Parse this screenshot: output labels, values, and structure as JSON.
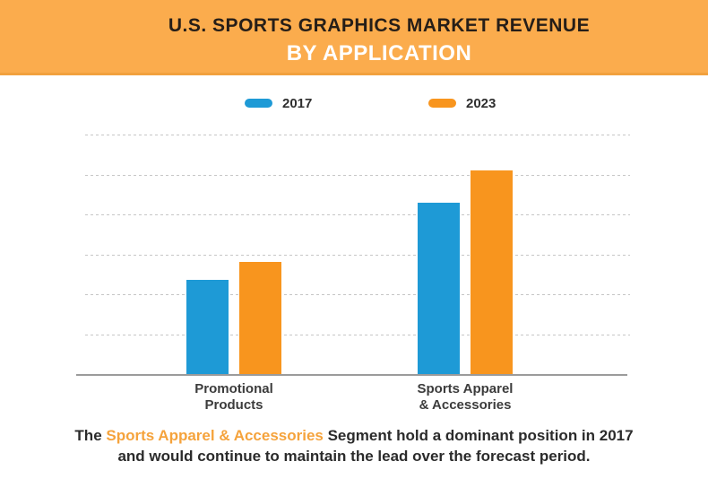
{
  "header": {
    "title": "U.S. SPORTS GRAPHICS MARKET REVENUE",
    "subtitle": "BY APPLICATION",
    "colors": {
      "background": "#FBAC4D",
      "border_bottom": "#F2A13E",
      "title_text": "#261E18",
      "subtitle_text": "#FFFFFF"
    }
  },
  "legend": {
    "items": [
      {
        "label": "2017",
        "color": "#1E9AD6"
      },
      {
        "label": "2023",
        "color": "#F8951E"
      }
    ]
  },
  "chart_data": {
    "type": "bar",
    "title": "U.S. Sports Graphics Market Revenue by Application",
    "categories": [
      [
        "Promotional",
        "Products"
      ],
      [
        "Sports Apparel",
        "& Accessories"
      ]
    ],
    "series": [
      {
        "name": "2017",
        "color": "#1E9AD6",
        "values": [
          2.35,
          4.3
        ]
      },
      {
        "name": "2023",
        "color": "#F8951E",
        "values": [
          2.8,
          5.1
        ]
      }
    ],
    "xlabel": "",
    "ylabel": "",
    "ylim": [
      0,
      6
    ],
    "gridline_values": [
      1,
      2,
      3,
      4,
      5,
      6
    ],
    "grid_style": "dashed horizontal",
    "y_tick_labels": "none shown; values estimated in gridline units",
    "legend_position": "top"
  },
  "caption": {
    "line1_prefix": "The ",
    "line1_highlight": "Sports Apparel & Accessories",
    "line1_suffix": " Segment hold a dominant position in 2017",
    "line2": "and would continue to maintain the lead over the forecast period.",
    "highlight_color": "#F5A33C",
    "text_color": "#2B2B2B"
  },
  "plot_colors": {
    "axis_line": "#9B9B9B",
    "gridline": "#C6C6C6",
    "category_label": "#3C3C3C",
    "background": "#FFFFFF"
  }
}
